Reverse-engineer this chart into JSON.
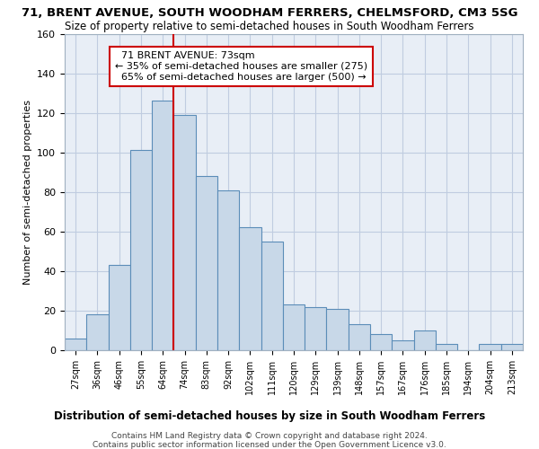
{
  "title_line1": "71, BRENT AVENUE, SOUTH WOODHAM FERRERS, CHELMSFORD, CM3 5SG",
  "title_line2": "Size of property relative to semi-detached houses in South Woodham Ferrers",
  "xlabel": "Distribution of semi-detached houses by size in South Woodham Ferrers",
  "ylabel": "Number of semi-detached properties",
  "categories": [
    "27sqm",
    "36sqm",
    "46sqm",
    "55sqm",
    "64sqm",
    "74sqm",
    "83sqm",
    "92sqm",
    "102sqm",
    "111sqm",
    "120sqm",
    "129sqm",
    "139sqm",
    "148sqm",
    "157sqm",
    "167sqm",
    "176sqm",
    "185sqm",
    "194sqm",
    "204sqm",
    "213sqm"
  ],
  "values": [
    6,
    18,
    43,
    101,
    126,
    119,
    88,
    81,
    62,
    55,
    23,
    22,
    21,
    13,
    8,
    5,
    10,
    3,
    0,
    3,
    3
  ],
  "bar_color": "#c8d8e8",
  "bar_edge_color": "#5b8db8",
  "annotation_box_color": "#cc0000",
  "vline_color": "#cc0000",
  "vline_x_index": 4.5,
  "ylim": [
    0,
    160
  ],
  "yticks": [
    0,
    20,
    40,
    60,
    80,
    100,
    120,
    140,
    160
  ],
  "grid_color": "#c0cce0",
  "bg_color": "#e8eef6",
  "marker_label": "71 BRENT AVENUE: 73sqm",
  "smaller_pct": "35% of semi-detached houses are smaller (275)",
  "larger_pct": "65% of semi-detached houses are larger (500)",
  "footer_line1": "Contains HM Land Registry data © Crown copyright and database right 2024.",
  "footer_line2": "Contains public sector information licensed under the Open Government Licence v3.0."
}
